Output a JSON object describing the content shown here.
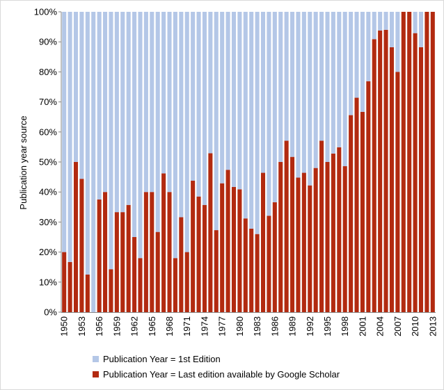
{
  "chart_data": {
    "type": "bar",
    "stacked": "percent",
    "title": "",
    "xlabel": "",
    "ylabel": "Publication year source",
    "ylim": [
      0,
      100
    ],
    "y_ticks": [
      "0%",
      "10%",
      "20%",
      "30%",
      "40%",
      "50%",
      "60%",
      "70%",
      "80%",
      "90%",
      "100%"
    ],
    "x_tick_labels": [
      "1950",
      "1953",
      "1956",
      "1959",
      "1962",
      "1965",
      "1968",
      "1971",
      "1974",
      "1977",
      "1980",
      "1983",
      "1986",
      "1989",
      "1992",
      "1995",
      "1998",
      "2001",
      "2004",
      "2007",
      "2010",
      "2013"
    ],
    "grid": false,
    "legend_position": "bottom",
    "categories": [
      "1950",
      "1951",
      "1952",
      "1953",
      "1954",
      "1955",
      "1956",
      "1957",
      "1958",
      "1959",
      "1960",
      "1961",
      "1962",
      "1963",
      "1964",
      "1965",
      "1966",
      "1967",
      "1968",
      "1969",
      "1970",
      "1971",
      "1972",
      "1973",
      "1974",
      "1975",
      "1976",
      "1977",
      "1978",
      "1979",
      "1980",
      "1981",
      "1982",
      "1983",
      "1984",
      "1985",
      "1986",
      "1987",
      "1988",
      "1989",
      "1990",
      "1991",
      "1992",
      "1993",
      "1994",
      "1995",
      "1996",
      "1997",
      "1998",
      "1999",
      "2000",
      "2001",
      "2002",
      "2003",
      "2004",
      "2005",
      "2006",
      "2007",
      "2008",
      "2009",
      "2010",
      "2011",
      "2012",
      "2013"
    ],
    "series": [
      {
        "name": "Publication Year = Last edition available by Google Scholar",
        "color": "#b22a10",
        "values": [
          20,
          16.7,
          50,
          44.4,
          12.5,
          0,
          37.5,
          40,
          14.3,
          33.3,
          33.3,
          35.7,
          25,
          18,
          40,
          40,
          26.7,
          46.2,
          40,
          18,
          31.6,
          20,
          43.8,
          38.5,
          35.7,
          52.9,
          27.3,
          42.9,
          47.4,
          41.7,
          40.9,
          31.2,
          27.8,
          26,
          46.4,
          32.1,
          36.6,
          50,
          57.1,
          51.7,
          44.8,
          46.4,
          42.2,
          48,
          57.1,
          50,
          52.8,
          54.9,
          48.6,
          65.6,
          71.4,
          66.7,
          76.9,
          90.9,
          93.8,
          94,
          88.2,
          80,
          100,
          100,
          92.9,
          88.2,
          100,
          100
        ]
      },
      {
        "name": "Publication Year = 1st Edition",
        "color": "#b4c7e7",
        "values": [
          80,
          83.3,
          50,
          55.6,
          87.5,
          100,
          62.5,
          60,
          85.7,
          66.7,
          66.7,
          64.3,
          75,
          82,
          60,
          60,
          73.3,
          53.8,
          60,
          82,
          68.4,
          80,
          56.2,
          61.5,
          64.3,
          47.1,
          72.7,
          57.1,
          52.6,
          58.3,
          59.1,
          68.8,
          72.2,
          74,
          53.6,
          67.9,
          63.4,
          50,
          42.9,
          48.3,
          55.2,
          53.6,
          57.8,
          52,
          42.9,
          50,
          47.2,
          45.1,
          51.4,
          34.4,
          28.6,
          33.3,
          23.1,
          9.1,
          6.2,
          6,
          11.8,
          20,
          0,
          0,
          7.1,
          11.8,
          0,
          0
        ]
      }
    ]
  }
}
